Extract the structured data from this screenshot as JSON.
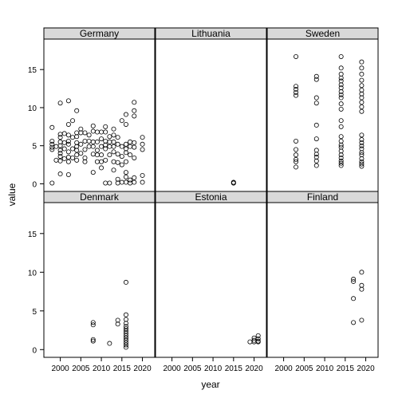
{
  "chart_data": {
    "type": "scatter",
    "layout": "lattice 3x2 panels",
    "xlabel": "year",
    "ylabel": "value",
    "xlim": [
      1996,
      2023
    ],
    "ylim": [
      -1,
      19
    ],
    "x_ticks": [
      2000,
      2005,
      2010,
      2015,
      2020
    ],
    "y_ticks": [
      0,
      5,
      10,
      15
    ],
    "x_tick_labels": [
      "2000",
      "2005",
      "2010",
      "2015",
      "2020"
    ],
    "y_tick_labels": [
      "0",
      "5",
      "10",
      "15"
    ],
    "marker": "open circle",
    "strip_color": "#d9d9d9",
    "panels": [
      {
        "name": "Germany",
        "points": [
          [
            1998,
            0.1
          ],
          [
            1998,
            4.5
          ],
          [
            1998,
            4.8
          ],
          [
            1998,
            5.2
          ],
          [
            1998,
            5.6
          ],
          [
            1998,
            7.4
          ],
          [
            1999,
            4.9
          ],
          [
            1999,
            3.1
          ],
          [
            2000,
            1.3
          ],
          [
            2000,
            3.0
          ],
          [
            2000,
            3.6
          ],
          [
            2000,
            4.0
          ],
          [
            2000,
            4.4
          ],
          [
            2000,
            5.0
          ],
          [
            2000,
            5.5
          ],
          [
            2000,
            6.1
          ],
          [
            2000,
            6.5
          ],
          [
            2000,
            10.6
          ],
          [
            2001,
            3.3
          ],
          [
            2001,
            4.6
          ],
          [
            2001,
            5.4
          ],
          [
            2001,
            6.6
          ],
          [
            2002,
            1.2
          ],
          [
            2002,
            2.9
          ],
          [
            2002,
            3.5
          ],
          [
            2002,
            4.2
          ],
          [
            2002,
            5.2
          ],
          [
            2002,
            5.6
          ],
          [
            2002,
            6.4
          ],
          [
            2002,
            7.8
          ],
          [
            2002,
            10.9
          ],
          [
            2003,
            3.4
          ],
          [
            2003,
            4.6
          ],
          [
            2003,
            6.1
          ],
          [
            2003,
            8.3
          ],
          [
            2004,
            3.1
          ],
          [
            2004,
            3.8
          ],
          [
            2004,
            4.4
          ],
          [
            2004,
            4.9
          ],
          [
            2004,
            5.4
          ],
          [
            2004,
            6.2
          ],
          [
            2004,
            6.7
          ],
          [
            2004,
            9.6
          ],
          [
            2005,
            4.0
          ],
          [
            2005,
            5.2
          ],
          [
            2005,
            6.7
          ],
          [
            2005,
            7.2
          ],
          [
            2006,
            2.9
          ],
          [
            2006,
            3.4
          ],
          [
            2006,
            4.5
          ],
          [
            2006,
            5.6
          ],
          [
            2006,
            6.7
          ],
          [
            2007,
            4.9
          ],
          [
            2007,
            5.6
          ],
          [
            2007,
            6.4
          ],
          [
            2008,
            1.5
          ],
          [
            2008,
            3.9
          ],
          [
            2008,
            4.9
          ],
          [
            2008,
            5.5
          ],
          [
            2008,
            6.9
          ],
          [
            2008,
            7.6
          ],
          [
            2009,
            2.9
          ],
          [
            2009,
            3.8
          ],
          [
            2009,
            4.4
          ],
          [
            2009,
            5.5
          ],
          [
            2009,
            6.8
          ],
          [
            2010,
            2.1
          ],
          [
            2010,
            2.9
          ],
          [
            2010,
            3.8
          ],
          [
            2010,
            4.9
          ],
          [
            2010,
            5.9
          ],
          [
            2010,
            6.8
          ],
          [
            2011,
            0.1
          ],
          [
            2011,
            3.1
          ],
          [
            2011,
            4.6
          ],
          [
            2011,
            5.1
          ],
          [
            2011,
            5.6
          ],
          [
            2011,
            6.8
          ],
          [
            2011,
            7.5
          ],
          [
            2012,
            0.1
          ],
          [
            2012,
            3.8
          ],
          [
            2012,
            4.9
          ],
          [
            2012,
            5.5
          ],
          [
            2012,
            6.2
          ],
          [
            2013,
            1.8
          ],
          [
            2013,
            2.9
          ],
          [
            2013,
            4.2
          ],
          [
            2013,
            4.9
          ],
          [
            2013,
            5.5
          ],
          [
            2013,
            6.4
          ],
          [
            2013,
            7.2
          ],
          [
            2014,
            0.1
          ],
          [
            2014,
            0.6
          ],
          [
            2014,
            2.8
          ],
          [
            2014,
            3.9
          ],
          [
            2014,
            5.2
          ],
          [
            2014,
            6.1
          ],
          [
            2015,
            0.2
          ],
          [
            2015,
            2.5
          ],
          [
            2015,
            3.6
          ],
          [
            2015,
            4.9
          ],
          [
            2015,
            8.3
          ],
          [
            2016,
            0.2
          ],
          [
            2016,
            0.9
          ],
          [
            2016,
            1.5
          ],
          [
            2016,
            2.9
          ],
          [
            2016,
            4.1
          ],
          [
            2016,
            4.6
          ],
          [
            2016,
            5.2
          ],
          [
            2016,
            7.8
          ],
          [
            2016,
            9.1
          ],
          [
            2017,
            0.1
          ],
          [
            2017,
            0.5
          ],
          [
            2017,
            3.8
          ],
          [
            2017,
            4.9
          ],
          [
            2017,
            5.5
          ],
          [
            2018,
            0.2
          ],
          [
            2018,
            0.8
          ],
          [
            2018,
            3.4
          ],
          [
            2018,
            4.8
          ],
          [
            2018,
            5.4
          ],
          [
            2018,
            8.9
          ],
          [
            2018,
            9.6
          ],
          [
            2018,
            10.7
          ],
          [
            2020,
            0.2
          ],
          [
            2020,
            1.1
          ],
          [
            2020,
            4.5
          ],
          [
            2020,
            5.2
          ],
          [
            2020,
            6.1
          ]
        ]
      },
      {
        "name": "Lithuania",
        "points": [
          [
            2015,
            0.1
          ],
          [
            2015,
            0.1
          ],
          [
            2015,
            0.2
          ]
        ]
      },
      {
        "name": "Sweden",
        "points": [
          [
            2003,
            2.2
          ],
          [
            2003,
            2.9
          ],
          [
            2003,
            3.2
          ],
          [
            2003,
            3.8
          ],
          [
            2003,
            4.5
          ],
          [
            2003,
            5.6
          ],
          [
            2003,
            11.6
          ],
          [
            2003,
            12.0
          ],
          [
            2003,
            12.4
          ],
          [
            2003,
            12.8
          ],
          [
            2003,
            16.7
          ],
          [
            2008,
            2.4
          ],
          [
            2008,
            3.0
          ],
          [
            2008,
            3.5
          ],
          [
            2008,
            3.9
          ],
          [
            2008,
            4.4
          ],
          [
            2008,
            5.9
          ],
          [
            2008,
            7.7
          ],
          [
            2008,
            10.6
          ],
          [
            2008,
            11.3
          ],
          [
            2008,
            13.7
          ],
          [
            2008,
            14.1
          ],
          [
            2014,
            2.4
          ],
          [
            2014,
            2.7
          ],
          [
            2014,
            3.0
          ],
          [
            2014,
            3.4
          ],
          [
            2014,
            3.8
          ],
          [
            2014,
            4.3
          ],
          [
            2014,
            4.8
          ],
          [
            2014,
            5.1
          ],
          [
            2014,
            5.6
          ],
          [
            2014,
            6.2
          ],
          [
            2014,
            7.5
          ],
          [
            2014,
            8.3
          ],
          [
            2014,
            9.8
          ],
          [
            2014,
            10.5
          ],
          [
            2014,
            11.3
          ],
          [
            2014,
            11.7
          ],
          [
            2014,
            12.1
          ],
          [
            2014,
            12.6
          ],
          [
            2014,
            13.0
          ],
          [
            2014,
            13.5
          ],
          [
            2014,
            13.9
          ],
          [
            2014,
            14.4
          ],
          [
            2014,
            15.2
          ],
          [
            2014,
            16.7
          ],
          [
            2019,
            2.3
          ],
          [
            2019,
            2.6
          ],
          [
            2019,
            2.9
          ],
          [
            2019,
            3.3
          ],
          [
            2019,
            3.8
          ],
          [
            2019,
            4.1
          ],
          [
            2019,
            4.6
          ],
          [
            2019,
            5.0
          ],
          [
            2019,
            5.4
          ],
          [
            2019,
            5.8
          ],
          [
            2019,
            6.4
          ],
          [
            2019,
            9.5
          ],
          [
            2019,
            10.1
          ],
          [
            2019,
            10.7
          ],
          [
            2019,
            11.3
          ],
          [
            2019,
            11.8
          ],
          [
            2019,
            12.3
          ],
          [
            2019,
            12.9
          ],
          [
            2019,
            13.6
          ],
          [
            2019,
            14.4
          ],
          [
            2019,
            15.2
          ],
          [
            2019,
            16.0
          ]
        ]
      },
      {
        "name": "Denmark",
        "points": [
          [
            2008,
            1.1
          ],
          [
            2008,
            1.3
          ],
          [
            2008,
            3.2
          ],
          [
            2008,
            3.5
          ],
          [
            2012,
            0.8
          ],
          [
            2014,
            3.3
          ],
          [
            2014,
            3.8
          ],
          [
            2016,
            0.3
          ],
          [
            2016,
            0.6
          ],
          [
            2016,
            0.9
          ],
          [
            2016,
            1.2
          ],
          [
            2016,
            1.5
          ],
          [
            2016,
            1.8
          ],
          [
            2016,
            2.1
          ],
          [
            2016,
            2.4
          ],
          [
            2016,
            2.7
          ],
          [
            2016,
            3.0
          ],
          [
            2016,
            3.4
          ],
          [
            2016,
            3.9
          ],
          [
            2016,
            4.5
          ],
          [
            2016,
            8.7
          ]
        ]
      },
      {
        "name": "Estonia",
        "points": [
          [
            2019,
            1.0
          ],
          [
            2020,
            1.0
          ],
          [
            2020,
            1.2
          ],
          [
            2020,
            1.5
          ],
          [
            2021,
            1.0
          ],
          [
            2021,
            1.1
          ],
          [
            2021,
            1.4
          ],
          [
            2021,
            1.8
          ]
        ]
      },
      {
        "name": "Finland",
        "points": [
          [
            2017,
            3.5
          ],
          [
            2017,
            6.6
          ],
          [
            2017,
            8.8
          ],
          [
            2017,
            9.1
          ],
          [
            2019,
            3.8
          ],
          [
            2019,
            7.8
          ],
          [
            2019,
            8.3
          ],
          [
            2019,
            10.0
          ]
        ]
      }
    ]
  }
}
